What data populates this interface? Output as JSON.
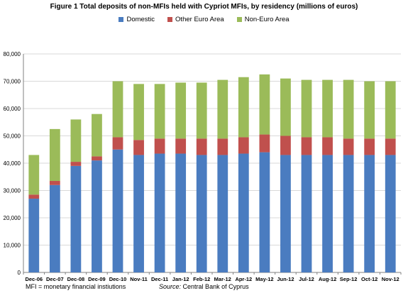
{
  "footnotes": {
    "abbreviation": "MFI = monetary financial instiutions",
    "source_label": "Source:",
    "source_text": "Central Bank of Cyprus"
  },
  "colors": {
    "domestic": "#4a7cc0",
    "other_euro": "#c0504d",
    "non_euro": "#9bbb59",
    "grid": "#d9d9d9",
    "axis": "#808080"
  },
  "chart_data": {
    "type": "bar",
    "stacked": true,
    "title": "Figure 1 Total deposits of non-MFIs held with Cypriot MFIs, by residency (millions of euros)",
    "xlabel": "",
    "ylabel": "",
    "ylim": [
      0,
      80000
    ],
    "yticks": [
      0,
      10000,
      20000,
      30000,
      40000,
      50000,
      60000,
      70000,
      80000
    ],
    "ytick_labels": [
      "0",
      "10,000",
      "20,000",
      "30,000",
      "40,000",
      "50,000",
      "60,000",
      "70,000",
      "80,000"
    ],
    "grid": true,
    "legend_position": "top-center",
    "categories": [
      "Dec-06",
      "Dec-07",
      "Dec-08",
      "Dec-09",
      "Dec-10",
      "Nov-11",
      "Dec-11",
      "Jan-12",
      "Feb-12",
      "Mar-12",
      "Apr-12",
      "May-12",
      "Jun-12",
      "Jul-12",
      "Aug-12",
      "Sep-12",
      "Oct-12",
      "Nov-12"
    ],
    "series": [
      {
        "name": "Domestic",
        "color": "#4a7cc0",
        "values": [
          27000,
          32000,
          39000,
          41000,
          45000,
          43000,
          43500,
          43500,
          43000,
          43000,
          43500,
          44000,
          43000,
          43000,
          43000,
          43000,
          43000,
          43000
        ]
      },
      {
        "name": "Other Euro Area",
        "color": "#c0504d",
        "values": [
          1500,
          1500,
          1500,
          1500,
          4500,
          5500,
          5500,
          5500,
          6000,
          6000,
          6000,
          6500,
          7000,
          6500,
          6500,
          6000,
          6000,
          6000
        ]
      },
      {
        "name": "Non-Euro Area",
        "color": "#9bbb59",
        "values": [
          14500,
          19000,
          15500,
          15500,
          20500,
          20500,
          20000,
          20500,
          20500,
          21500,
          22000,
          22000,
          21000,
          21000,
          21000,
          21500,
          21000,
          21000
        ]
      }
    ]
  }
}
